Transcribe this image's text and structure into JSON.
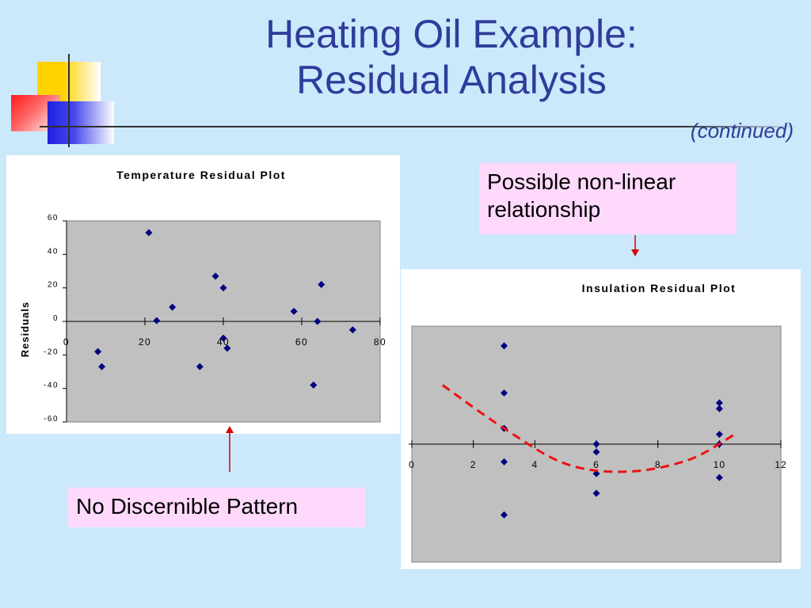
{
  "slide": {
    "title_line1": "Heating Oil Example:",
    "title_line2": "Residual Analysis",
    "subtitle": "(continued)"
  },
  "callouts": {
    "nonlinear": "Possible non-linear relationship",
    "no_pattern": "No Discernible Pattern"
  },
  "colors": {
    "background": "#cce8fb",
    "title": "#2e3d9a",
    "marker": "#000080",
    "plot_area": "#c0c0c0",
    "curve": "#ee1111",
    "arrow": "#dd0000",
    "callout": "#ffd9fb"
  },
  "chart_data": [
    {
      "type": "scatter",
      "title": "Temperature Residual Plot",
      "xlabel": "",
      "ylabel": "Residuals",
      "xlim": [
        0,
        80
      ],
      "ylim": [
        -60,
        60
      ],
      "x_ticks": [
        0,
        20,
        40,
        60,
        80
      ],
      "y_ticks": [
        60,
        40,
        20,
        0,
        -20,
        -40,
        -60
      ],
      "grid": false,
      "legend": "none",
      "series": [
        {
          "points": [
            [
              8,
              -18
            ],
            [
              9,
              -27
            ],
            [
              21,
              53
            ],
            [
              23,
              0.5
            ],
            [
              27,
              8.5
            ],
            [
              34,
              -27
            ],
            [
              38,
              27
            ],
            [
              40,
              20
            ],
            [
              40,
              -10
            ],
            [
              41,
              -16
            ],
            [
              58,
              6
            ],
            [
              63,
              -38
            ],
            [
              64,
              0
            ],
            [
              65,
              22
            ],
            [
              73,
              -5
            ]
          ]
        }
      ]
    },
    {
      "type": "scatter",
      "title": "Insulation Residual Plot",
      "xlabel": "",
      "ylabel": "",
      "xlim": [
        0,
        12
      ],
      "ylim": [
        -60,
        60
      ],
      "x_ticks": [
        0,
        2,
        4,
        6,
        8,
        10,
        12
      ],
      "grid": false,
      "legend": "none",
      "series": [
        {
          "points": [
            [
              3,
              50
            ],
            [
              3,
              26
            ],
            [
              3,
              8
            ],
            [
              3,
              -9
            ],
            [
              3,
              -36
            ],
            [
              6,
              0
            ],
            [
              6,
              -4
            ],
            [
              6,
              -15
            ],
            [
              6,
              -25
            ],
            [
              10,
              21
            ],
            [
              10,
              18
            ],
            [
              10,
              5
            ],
            [
              10,
              0
            ],
            [
              10,
              -17
            ]
          ]
        }
      ],
      "trend_curve": {
        "style": "dashed",
        "points": [
          [
            1,
            30
          ],
          [
            3,
            8
          ],
          [
            5,
            -10
          ],
          [
            7,
            -14
          ],
          [
            9,
            -8
          ],
          [
            10.5,
            5
          ]
        ]
      }
    }
  ]
}
